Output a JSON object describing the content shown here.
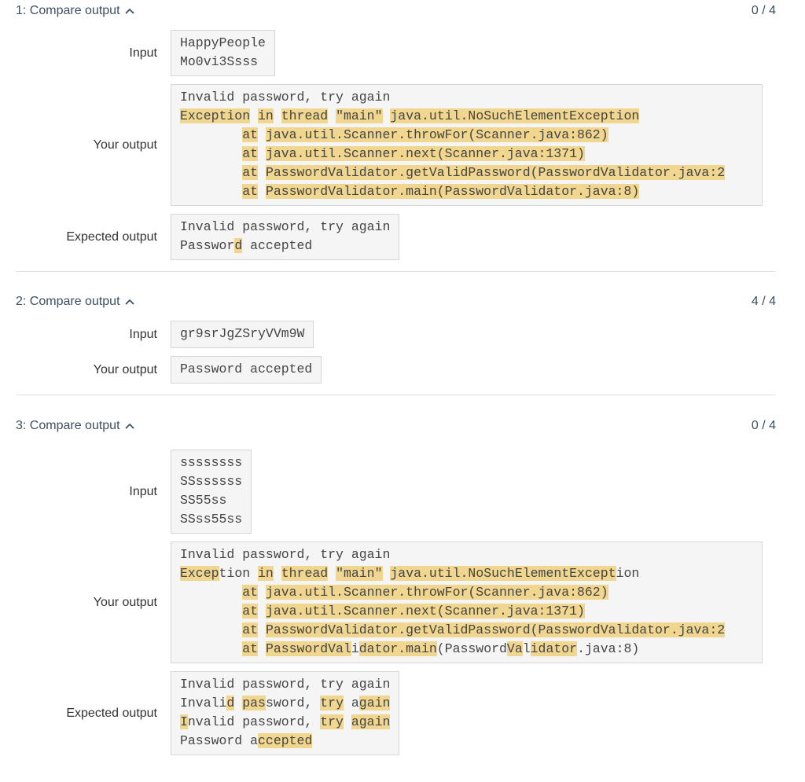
{
  "tests": [
    {
      "title": "1: Compare output",
      "score": "0 / 4",
      "rows": [
        {
          "label": "Input",
          "lines": [
            [
              "HappyPeople"
            ],
            [
              "Mo0vi3Ssss"
            ]
          ]
        },
        {
          "label": "Your output",
          "lines": [
            [
              "Invalid password, try again"
            ],
            [
              {
                "hl": "Exception"
              },
              " ",
              {
                "hl": "in"
              },
              " ",
              {
                "hl": "thread"
              },
              " ",
              {
                "hl": "\"main\""
              },
              " ",
              {
                "hl": "java.util.NoSuchElementException"
              }
            ],
            [
              "        ",
              {
                "hl": "at"
              },
              " ",
              {
                "hl": "java.util.Scanner.throwFor(Scanner.java:862)"
              }
            ],
            [
              "        ",
              {
                "hl": "at"
              },
              " ",
              {
                "hl": "java.util.Scanner.next(Scanner.java:1371)"
              }
            ],
            [
              "        ",
              {
                "hl": "at"
              },
              " ",
              {
                "hl": "PasswordValidator.getValidPassword(PasswordValidator.java:2"
              }
            ],
            [
              "        ",
              {
                "hl": "at"
              },
              " ",
              {
                "hl": "PasswordValidator.main(PasswordValidator.java:8)"
              }
            ]
          ]
        },
        {
          "label": "Expected output",
          "lines": [
            [
              "Invalid password, try again"
            ],
            [
              "Passwor",
              {
                "hl": "d"
              },
              " accepted"
            ]
          ]
        }
      ]
    },
    {
      "title": "2: Compare output",
      "score": "4 / 4",
      "rows": [
        {
          "label": "Input",
          "lines": [
            [
              "gr9srJgZSryVVm9W"
            ]
          ]
        },
        {
          "label": "Your output",
          "lines": [
            [
              "Password accepted"
            ]
          ]
        }
      ]
    },
    {
      "title": "3: Compare output",
      "score": "0 / 4",
      "rows": [
        {
          "label": "Input",
          "lines": [
            [
              "ssssssss"
            ],
            [
              "SSssssss"
            ],
            [
              "SS55ss"
            ],
            [
              "SSss55ss"
            ]
          ]
        },
        {
          "label": "Your output",
          "lines": [
            [
              "Invalid password, try again"
            ],
            [
              {
                "hl": "Excep"
              },
              "tion ",
              {
                "hl": "in"
              },
              " ",
              {
                "hl": "thread"
              },
              " ",
              {
                "hl": "\"main\""
              },
              " ",
              {
                "hl": "java.util.NoSuchElementExcept"
              },
              "ion"
            ],
            [
              "        ",
              {
                "hl": "at"
              },
              " ",
              {
                "hl": "java.util.Scanner.throwFor(Scanner.java:862)"
              }
            ],
            [
              "        ",
              {
                "hl": "at"
              },
              " ",
              {
                "hl": "java.util.Scanner.next(Scanner.java:1371)"
              }
            ],
            [
              "        ",
              {
                "hl": "at"
              },
              " ",
              {
                "hl": "PasswordValidator.getValidPassword(PasswordValidator.java:2"
              }
            ],
            [
              "        ",
              {
                "hl": "at"
              },
              " ",
              {
                "hl": "PasswordVal"
              },
              "i",
              {
                "hl": "dator.main"
              },
              "(Password",
              {
                "hl": "Va"
              },
              "l",
              {
                "hl": "idator"
              },
              ".java:8)"
            ]
          ]
        },
        {
          "label": "Expected output",
          "lines": [
            [
              "Invalid password, try again"
            ],
            [
              "Invali",
              {
                "hl": "d"
              },
              " ",
              {
                "hl": "pas"
              },
              "sword, ",
              {
                "hl": "try"
              },
              " a",
              {
                "hl": "gain"
              }
            ],
            [
              {
                "hl": "I"
              },
              "nvalid password, ",
              {
                "hl": "try"
              },
              " ",
              {
                "hl": "again"
              }
            ],
            [
              "Password a",
              {
                "hl": "ccepted"
              }
            ]
          ]
        }
      ]
    }
  ]
}
